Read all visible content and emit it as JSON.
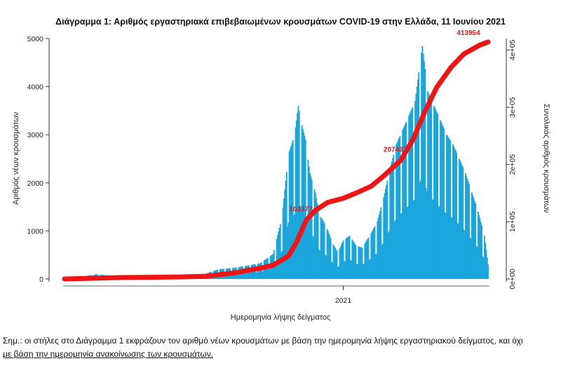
{
  "chart_data": {
    "type": "bar",
    "title": "Διάγραμμα 1: Αριθμός εργαστηριακά επιβεβαιωμένων κρουσμάτων COVID-19 στην Ελλάδα, 11 Ιουνίου 2021",
    "xlabel": "Ημερομηνία λήψης δείγματος",
    "ylabel": "Αριθμός νέων κρουσμάτων",
    "y2label": "Συνολικός αριθμός κρουσμάτων",
    "ylim": [
      0,
      5000
    ],
    "y2lim": [
      0,
      420000
    ],
    "yticks": [
      "0",
      "1000",
      "2000",
      "3000",
      "4000",
      "5000"
    ],
    "y2ticks": [
      "0e+00",
      "1e+05",
      "2e+05",
      "3e+05",
      "4e+05"
    ],
    "y2tick_values": [
      0,
      100000,
      200000,
      300000,
      400000
    ],
    "x_start": "2020-02-26",
    "x_end": "2021-06-11",
    "x_tick": {
      "label": "2021",
      "date": "2021-01-01"
    },
    "bar_color": "#1ba6dc",
    "line_color": "#f01414",
    "annotations": [
      {
        "text": "103377",
        "date": "2020-11-21",
        "value": 103377
      },
      {
        "text": "207497",
        "date": "2021-03-06",
        "value": 207497
      },
      {
        "text": "413954",
        "date": "2021-06-11",
        "value": 413954
      }
    ],
    "series": [
      {
        "kind": "bar",
        "axis": "left",
        "points": [
          [
            "2020-03-01",
            5
          ],
          [
            "2020-03-15",
            45
          ],
          [
            "2020-04-01",
            95
          ],
          [
            "2020-04-15",
            75
          ],
          [
            "2020-05-01",
            30
          ],
          [
            "2020-05-15",
            15
          ],
          [
            "2020-06-01",
            20
          ],
          [
            "2020-06-15",
            25
          ],
          [
            "2020-07-01",
            35
          ],
          [
            "2020-07-15",
            45
          ],
          [
            "2020-08-01",
            110
          ],
          [
            "2020-08-15",
            200
          ],
          [
            "2020-09-01",
            230
          ],
          [
            "2020-09-15",
            270
          ],
          [
            "2020-10-01",
            330
          ],
          [
            "2020-10-15",
            520
          ],
          [
            "2020-10-25",
            1300
          ],
          [
            "2020-11-01",
            2600
          ],
          [
            "2020-11-08",
            3000
          ],
          [
            "2020-11-12",
            3600
          ],
          [
            "2020-11-16",
            3200
          ],
          [
            "2020-11-20",
            2900
          ],
          [
            "2020-11-25",
            2200
          ],
          [
            "2020-12-01",
            1800
          ],
          [
            "2020-12-05",
            1350
          ],
          [
            "2020-12-10",
            1200
          ],
          [
            "2020-12-15",
            1000
          ],
          [
            "2020-12-20",
            750
          ],
          [
            "2020-12-26",
            550
          ],
          [
            "2021-01-01",
            800
          ],
          [
            "2021-01-08",
            900
          ],
          [
            "2021-01-15",
            700
          ],
          [
            "2021-01-22",
            650
          ],
          [
            "2021-02-01",
            950
          ],
          [
            "2021-02-08",
            1200
          ],
          [
            "2021-02-15",
            1700
          ],
          [
            "2021-02-22",
            2300
          ],
          [
            "2021-03-01",
            2800
          ],
          [
            "2021-03-08",
            3100
          ],
          [
            "2021-03-15",
            3400
          ],
          [
            "2021-03-22",
            3700
          ],
          [
            "2021-03-26",
            4300
          ],
          [
            "2021-03-30",
            4840
          ],
          [
            "2021-04-05",
            3900
          ],
          [
            "2021-04-12",
            3600
          ],
          [
            "2021-04-19",
            3300
          ],
          [
            "2021-04-26",
            3000
          ],
          [
            "2021-05-03",
            2800
          ],
          [
            "2021-05-10",
            2500
          ],
          [
            "2021-05-17",
            2200
          ],
          [
            "2021-05-24",
            1800
          ],
          [
            "2021-05-31",
            1400
          ],
          [
            "2021-06-07",
            900
          ],
          [
            "2021-06-11",
            300
          ]
        ]
      },
      {
        "kind": "line",
        "axis": "right",
        "points": [
          [
            "2020-02-26",
            0
          ],
          [
            "2020-04-01",
            1300
          ],
          [
            "2020-05-01",
            2600
          ],
          [
            "2020-06-01",
            3000
          ],
          [
            "2020-07-01",
            3500
          ],
          [
            "2020-08-01",
            4800
          ],
          [
            "2020-09-01",
            10500
          ],
          [
            "2020-10-01",
            19000
          ],
          [
            "2020-10-15",
            24000
          ],
          [
            "2020-11-01",
            40000
          ],
          [
            "2020-11-10",
            64000
          ],
          [
            "2020-11-21",
            103377
          ],
          [
            "2020-12-01",
            120000
          ],
          [
            "2020-12-15",
            134000
          ],
          [
            "2021-01-01",
            141000
          ],
          [
            "2021-01-15",
            150000
          ],
          [
            "2021-02-01",
            162000
          ],
          [
            "2021-02-15",
            180000
          ],
          [
            "2021-03-06",
            207497
          ],
          [
            "2021-03-20",
            245000
          ],
          [
            "2021-04-01",
            290000
          ],
          [
            "2021-04-15",
            335000
          ],
          [
            "2021-05-01",
            370000
          ],
          [
            "2021-05-15",
            393000
          ],
          [
            "2021-06-01",
            408000
          ],
          [
            "2021-06-11",
            413954
          ]
        ]
      }
    ]
  },
  "note": {
    "lead": "Σημ.: οι στήλες στο Διάγραμμα 1 εκφράζουν τον αριθμό νέων κρουσμάτων με βάση την ημερομηνία λήψης εργαστηριακού δείγματος, και όχι",
    "rest": "με βάση την ημερομηνία ανακοίνωσης των κρουσμάτων."
  }
}
